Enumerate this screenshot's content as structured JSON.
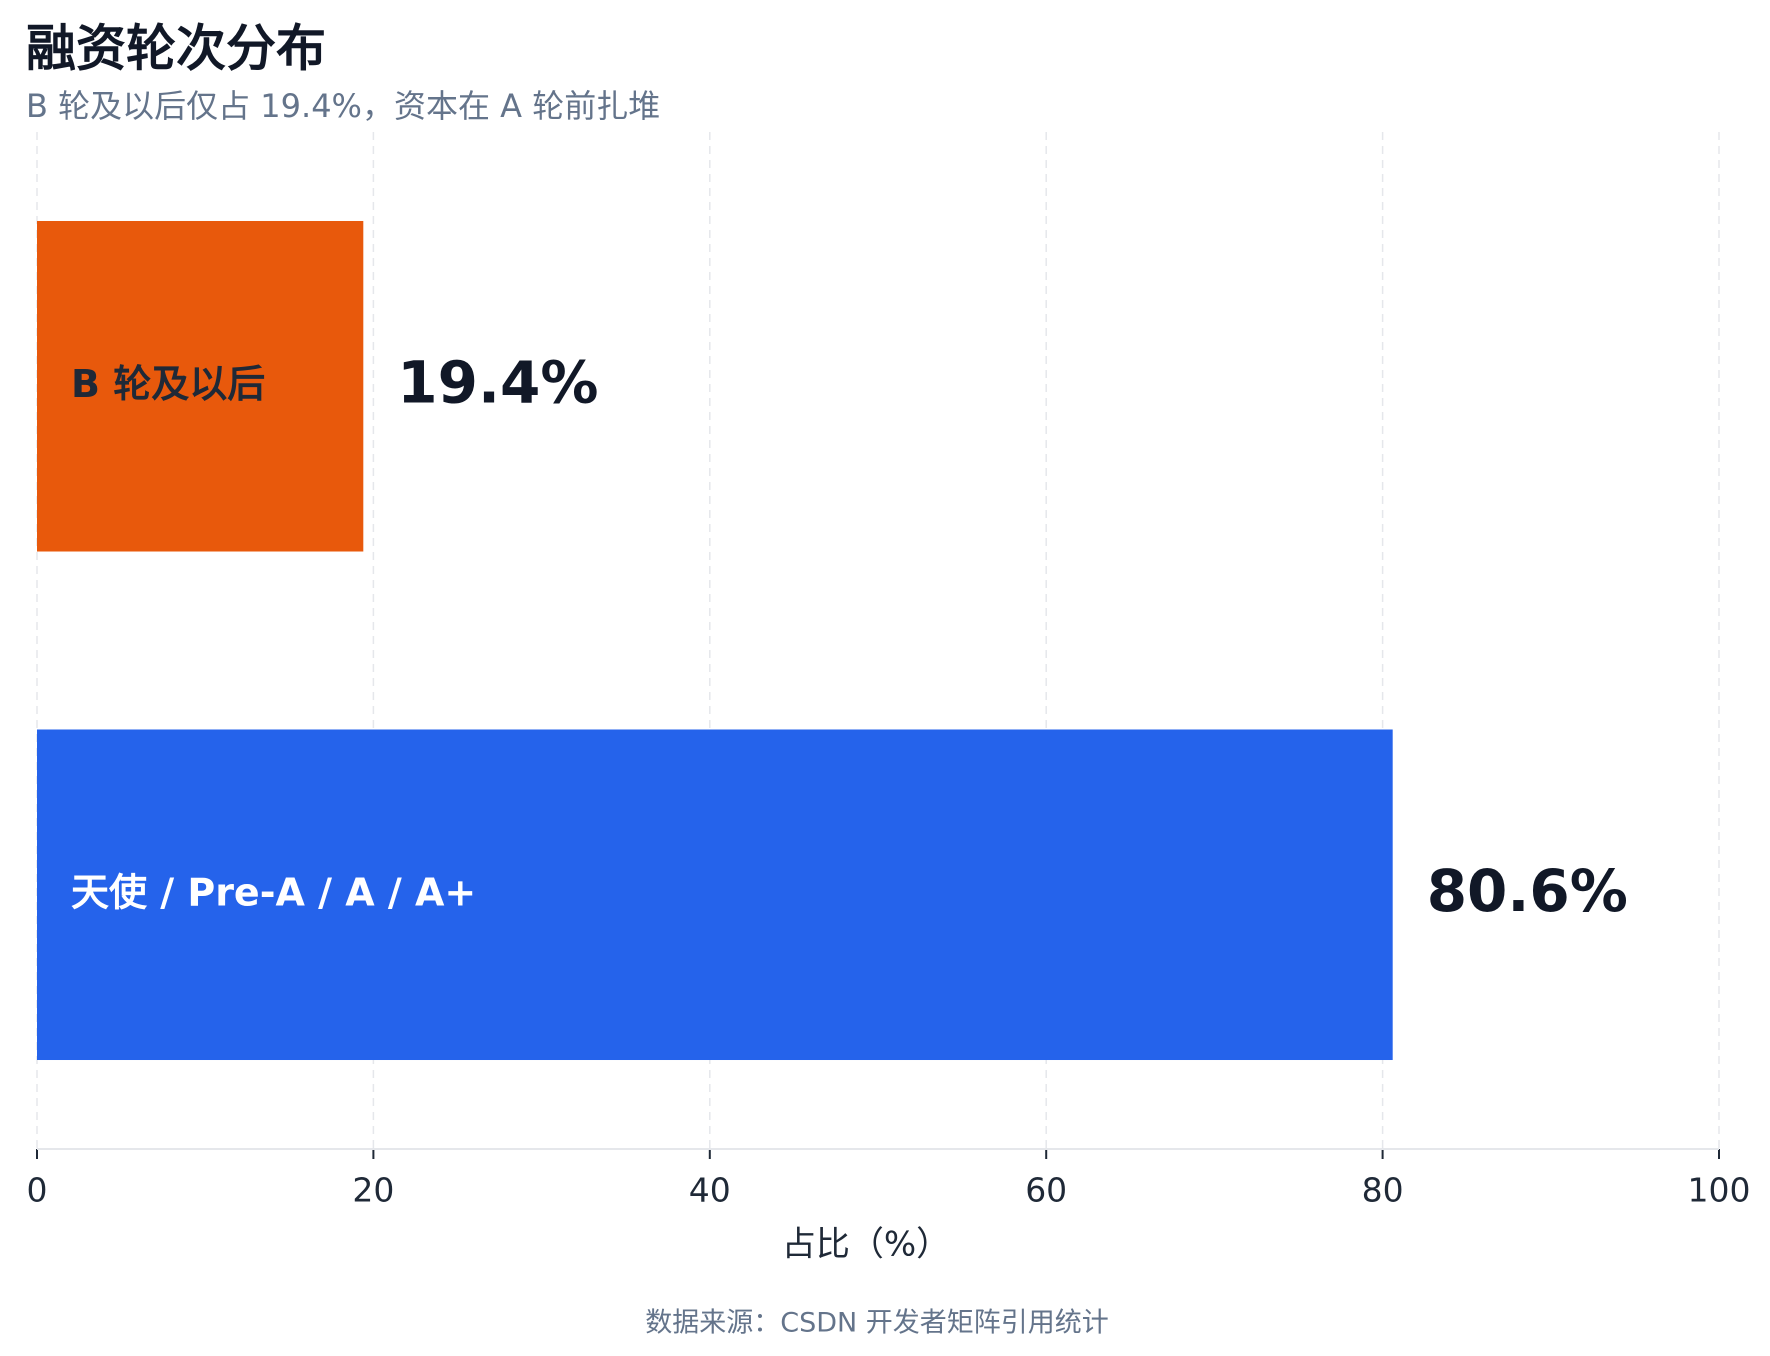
{
  "chart_data": {
    "type": "bar",
    "orientation": "horizontal",
    "title": "融资轮次分布",
    "subtitle": "B 轮及以后仅占 19.4%，资本在 A 轮前扎堆",
    "categories": [
      "B 轮及以后",
      "天使 / Pre-A / A / A+"
    ],
    "values": [
      19.4,
      80.6
    ],
    "value_labels": [
      "19.4%",
      "80.6%"
    ],
    "colors": [
      "#e8590c",
      "#2563eb"
    ],
    "label_colors": [
      "#1f2937",
      "#ffffff"
    ],
    "xlabel": "占比（%）",
    "xlim": [
      0,
      100
    ],
    "xticks": [
      0,
      20,
      40,
      60,
      80,
      100
    ],
    "grid": true,
    "source": "数据来源：CSDN 开发者矩阵引用统计"
  }
}
